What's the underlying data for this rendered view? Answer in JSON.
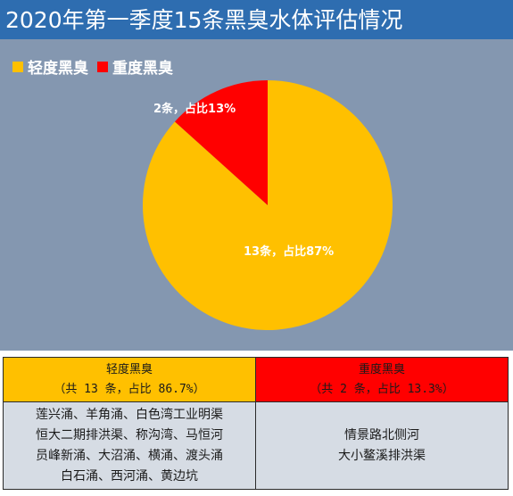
{
  "title": "2020年第一季度15条黑臭水体评估情况",
  "colors": {
    "title_bg": "#2e6db0",
    "chart_bg": "#8497b0",
    "mild": "#ffc000",
    "severe": "#ff0000",
    "table_body_bg": "#d6dce4"
  },
  "chart_data": {
    "type": "pie",
    "legend_position": "top-left",
    "series": [
      {
        "name": "轻度黑臭",
        "value": 13,
        "data_label": "13条，占比87%",
        "color": "#ffc000"
      },
      {
        "name": "重度黑臭",
        "value": 2,
        "data_label": "2条，占比13%",
        "color": "#ff0000"
      }
    ]
  },
  "table": {
    "headers": [
      {
        "line1": "轻度黑臭",
        "line2": "（共 13 条，占比 86.7%）"
      },
      {
        "line1": "重度黑臭",
        "line2": "（共 2 条，占比 13.3%）"
      }
    ],
    "mild_rivers": [
      "莲兴涌、羊角涌、白色湾工业明渠",
      "恒大二期排洪渠、称沟湾、马恒河",
      "员峰新涌、大沼涌、横涌、渡头涌",
      "白石涌、西河涌、黄边坑"
    ],
    "severe_rivers": [
      "情景路北侧河",
      "大小鳌溪排洪渠"
    ]
  }
}
